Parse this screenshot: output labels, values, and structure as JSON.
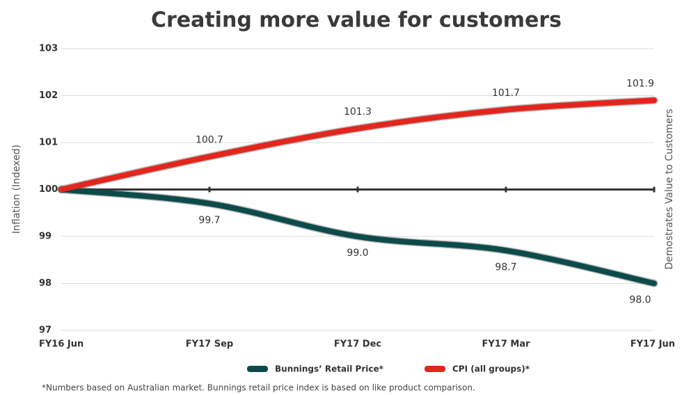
{
  "chart_data": {
    "type": "line",
    "title": "Creating more value for customers",
    "y_label": "Inflation (Indexed)",
    "right_label": "Demostrates Value to Customers",
    "footnote": "*Numbers based on Australian market.  Bunnings retail price index is based on like product comparison.",
    "categories": [
      "FY16 Jun",
      "FY17 Sep",
      "FY17 Dec",
      "FY17 Mar",
      "FY17 Jun"
    ],
    "series": [
      {
        "name": "Bunnings’ Retail Price*",
        "color": "#0d4b4b",
        "values": [
          100,
          99.7,
          99.0,
          98.7,
          98.0
        ],
        "value_labels": [
          null,
          "99.7",
          "99.0",
          "98.7",
          "98.0"
        ],
        "label_side": "below"
      },
      {
        "name": "CPI (all groups)*",
        "color": "#e3261d",
        "values": [
          100,
          100.7,
          101.3,
          101.7,
          101.9
        ],
        "value_labels": [
          null,
          "100.7",
          "101.3",
          "101.7",
          "101.9"
        ],
        "label_side": "above"
      }
    ],
    "ylim": [
      97,
      103
    ],
    "yticks": [
      97,
      98,
      99,
      100,
      101,
      102,
      103
    ],
    "baseline": 100,
    "grid": true
  }
}
